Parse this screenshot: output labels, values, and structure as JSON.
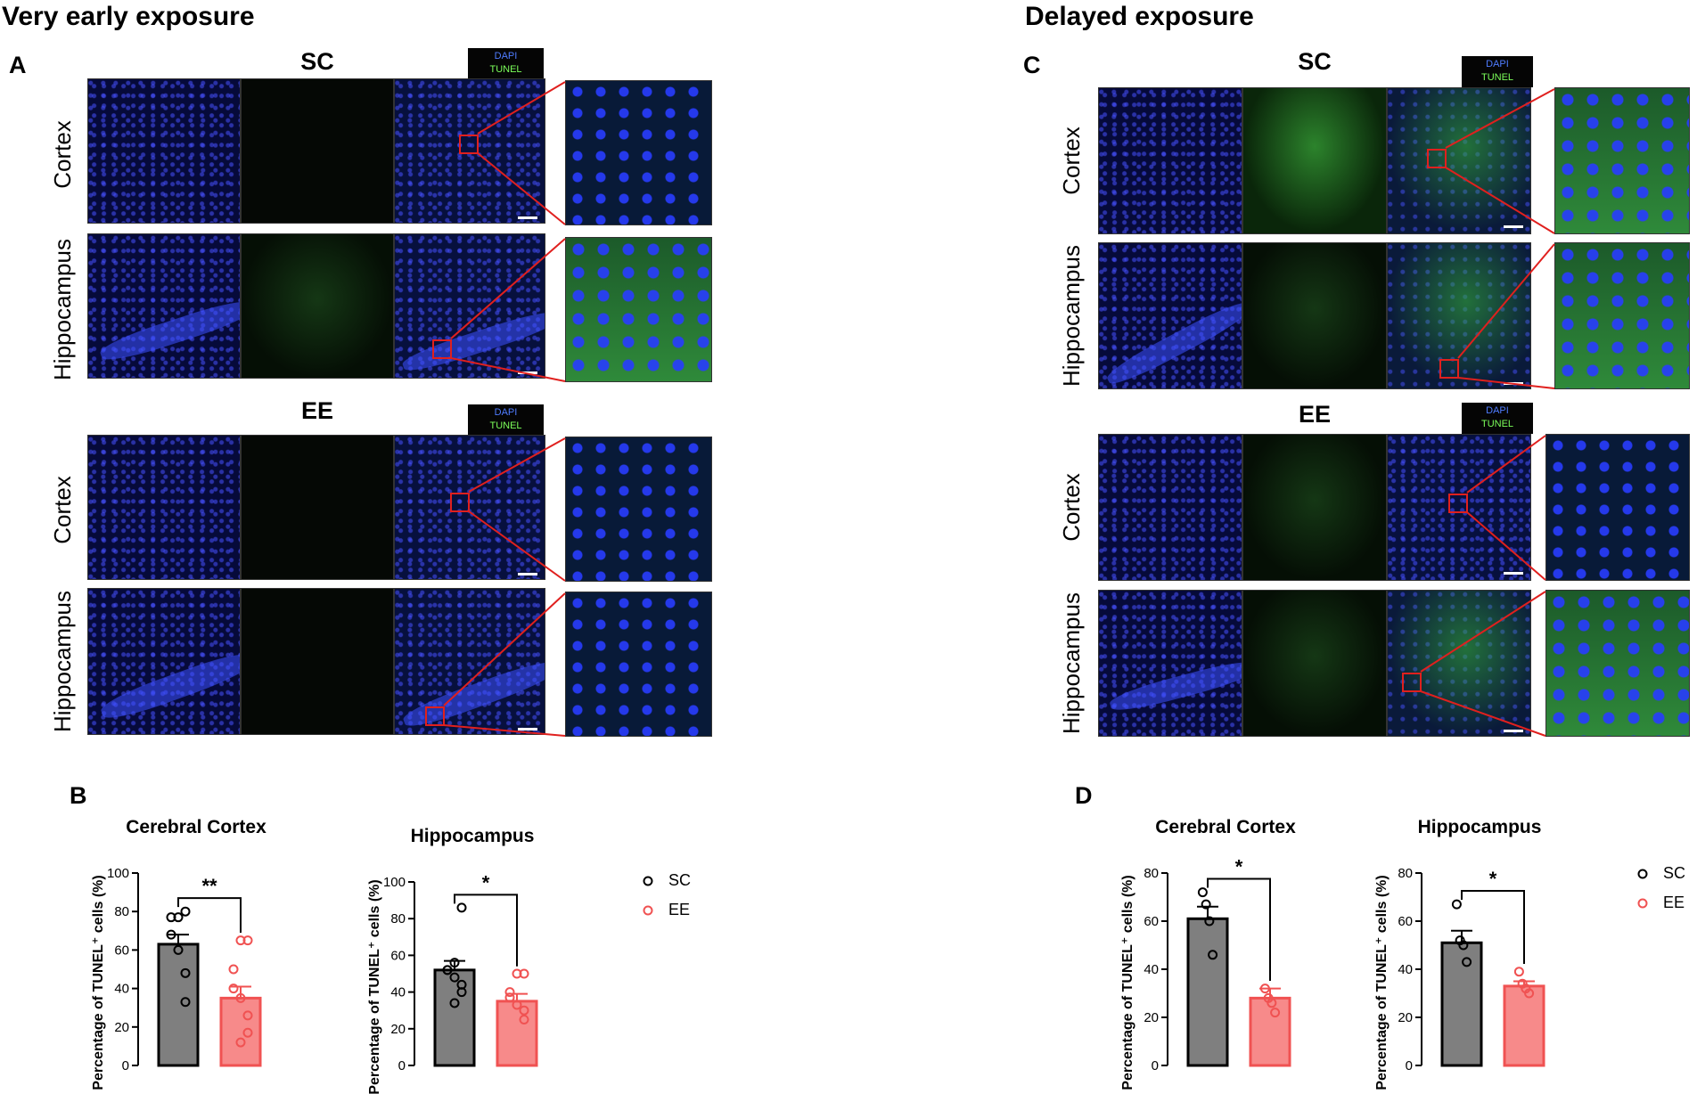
{
  "sections": [
    {
      "title": "Very early exposure"
    },
    {
      "title": "Delayed exposure"
    }
  ],
  "panel_letters": {
    "a": "A",
    "b": "B",
    "c": "C",
    "d": "D"
  },
  "groups": {
    "sc": "SC",
    "ee": "EE"
  },
  "regions": {
    "cortex": "Cortex",
    "hippocampus": "Hippocampus"
  },
  "legend_box": {
    "dapi": "DAPI",
    "tunel": "TUNEL"
  },
  "colors": {
    "sc_bar": "#7f7f7f",
    "ee_bar": "#f78a8a",
    "ee_marker": "#f05252",
    "inset_box": "#e0201e"
  },
  "chart_legend": {
    "sc": "SC",
    "ee": "EE"
  },
  "chart_data": [
    {
      "panel": "B",
      "type": "bar",
      "title": "Cerebral Cortex",
      "ylabel": "Percentage of TUNEL⁺ cells (%)",
      "ylim": [
        0,
        100
      ],
      "yticks": [
        0,
        20,
        40,
        60,
        80,
        100
      ],
      "categories": [
        "SC",
        "EE"
      ],
      "values": [
        63,
        35
      ],
      "sem": [
        5,
        6
      ],
      "points": [
        [
          80,
          77,
          77,
          68,
          60,
          48,
          33
        ],
        [
          65,
          65,
          50,
          40,
          35,
          26,
          17,
          12
        ]
      ],
      "significance": "**"
    },
    {
      "panel": "B",
      "type": "bar",
      "title": "Hippocampus",
      "ylabel": "Percentage of TUNEL⁺ cells (%)",
      "ylim": [
        0,
        100
      ],
      "yticks": [
        0,
        20,
        40,
        60,
        80,
        100
      ],
      "categories": [
        "SC",
        "EE"
      ],
      "values": [
        52,
        35
      ],
      "sem": [
        5,
        4
      ],
      "points": [
        [
          86,
          56,
          52,
          52,
          48,
          44,
          40,
          34
        ],
        [
          50,
          50,
          40,
          37,
          33,
          30,
          25
        ]
      ],
      "significance": "*"
    },
    {
      "panel": "D",
      "type": "bar",
      "title": "Cerebral Cortex",
      "ylabel": "Percentage of TUNEL⁺ cells (%)",
      "ylim": [
        0,
        80
      ],
      "yticks": [
        0,
        20,
        40,
        60,
        80
      ],
      "categories": [
        "SC",
        "EE"
      ],
      "values": [
        61,
        28
      ],
      "sem": [
        5,
        4
      ],
      "points": [
        [
          72,
          67,
          60,
          46
        ],
        [
          32,
          28,
          26,
          22
        ]
      ],
      "significance": "*"
    },
    {
      "panel": "D",
      "type": "bar",
      "title": "Hippocampus",
      "ylabel": "Percentage of TUNEL⁺ cells (%)",
      "ylim": [
        0,
        80
      ],
      "yticks": [
        0,
        20,
        40,
        60,
        80
      ],
      "categories": [
        "SC",
        "EE"
      ],
      "values": [
        51,
        33
      ],
      "sem": [
        5,
        2
      ],
      "points": [
        [
          67,
          52,
          50,
          43
        ],
        [
          39,
          34,
          32,
          30
        ]
      ],
      "significance": "*"
    }
  ]
}
